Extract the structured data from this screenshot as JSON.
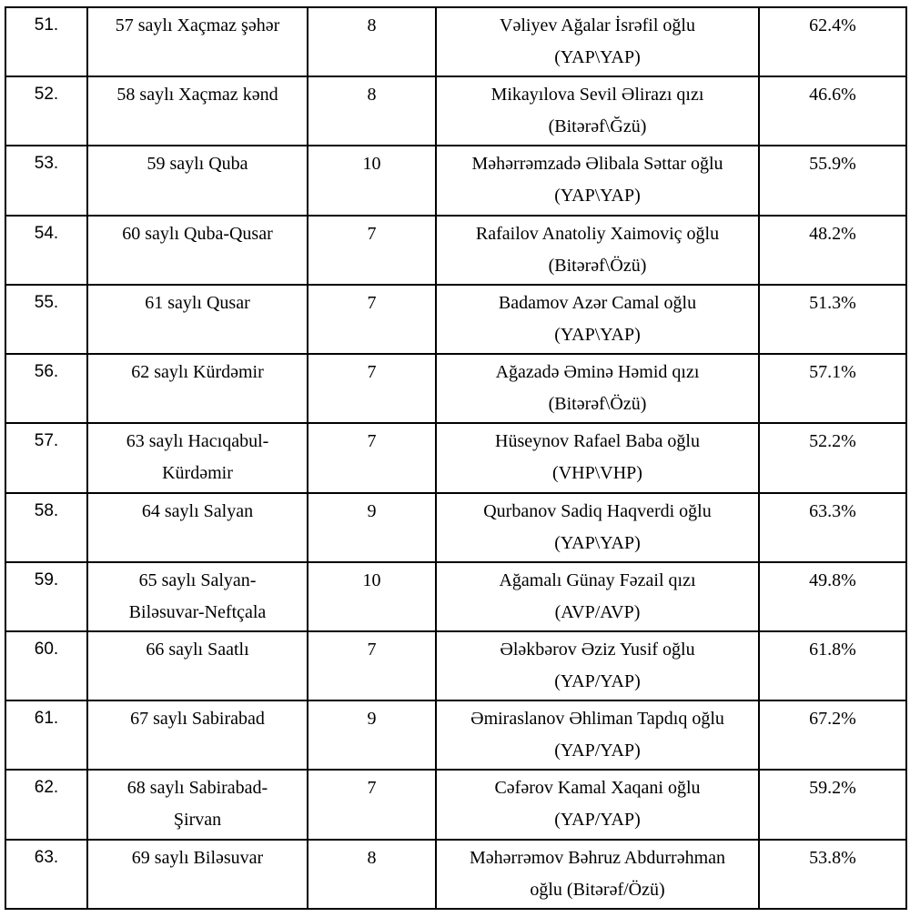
{
  "table": {
    "description": "Election results table, rows 51-63, Azerbaijani single-mandate constituencies",
    "rows": [
      {
        "no": "51.",
        "district": [
          "57 saylı Xaçmaz şəhər"
        ],
        "count": "8",
        "winner": [
          "Vəliyev Ağalar İsrəfil oğlu",
          "(YAP\\YAP)"
        ],
        "percent": "62.4%"
      },
      {
        "no": "52.",
        "district": [
          "58 saylı Xaçmaz kənd"
        ],
        "count": "8",
        "winner": [
          "Mikayılova Sevil Əlirazı qızı",
          "(Bitərəf\\Ğzü)"
        ],
        "percent": "46.6%"
      },
      {
        "no": "53.",
        "district": [
          "59 saylı Quba"
        ],
        "count": "10",
        "winner": [
          "Məhərrəmzadə Əlibala Səttar oğlu",
          "(YAP\\YAP)"
        ],
        "percent": "55.9%"
      },
      {
        "no": "54.",
        "district": [
          "60 saylı Quba-Qusar"
        ],
        "count": "7",
        "winner": [
          "Rafailov Anatoliy Xaimoviç oğlu",
          "(Bitərəf\\Özü)"
        ],
        "percent": "48.2%"
      },
      {
        "no": "55.",
        "district": [
          "61 saylı Qusar"
        ],
        "count": "7",
        "winner": [
          "Badamov Azər Camal oğlu",
          "(YAP\\YAP)"
        ],
        "percent": "51.3%"
      },
      {
        "no": "56.",
        "district": [
          "62 saylı Kürdəmir"
        ],
        "count": "7",
        "winner": [
          "Ağazadə Əminə Həmid qızı",
          "(Bitərəf\\Özü)"
        ],
        "percent": "57.1%"
      },
      {
        "no": "57.",
        "district": [
          "63 saylı Hacıqabul-",
          "Kürdəmir"
        ],
        "count": "7",
        "winner": [
          "Hüseynov Rafael Baba oğlu",
          "(VHP\\VHP)"
        ],
        "percent": "52.2%"
      },
      {
        "no": "58.",
        "district": [
          "64 saylı Salyan"
        ],
        "count": "9",
        "winner": [
          "Qurbanov Sadiq Haqverdi oğlu",
          "(YAP\\YAP)"
        ],
        "percent": "63.3%"
      },
      {
        "no": "59.",
        "district": [
          "65 saylı Salyan-",
          "Biləsuvar-Neftçala"
        ],
        "count": "10",
        "winner": [
          "Ağamalı Günay Fəzail qızı",
          "(AVP/AVP)"
        ],
        "percent": "49.8%"
      },
      {
        "no": "60.",
        "district": [
          "66 saylı Saatlı"
        ],
        "count": "7",
        "winner": [
          "Ələkbərov Əziz Yusif oğlu",
          "(YAP/YAP)"
        ],
        "percent": "61.8%"
      },
      {
        "no": "61.",
        "district": [
          "67 saylı Sabirabad"
        ],
        "count": "9",
        "winner": [
          "Əmiraslanov Əhliman Tapdıq oğlu",
          "(YAP/YAP)"
        ],
        "percent": "67.2%"
      },
      {
        "no": "62.",
        "district": [
          "68 saylı Sabirabad-",
          "Şirvan"
        ],
        "count": "7",
        "winner": [
          "Cəfərov Kamal Xaqani oğlu",
          "(YAP/YAP)"
        ],
        "percent": "59.2%"
      },
      {
        "no": "63.",
        "district": [
          "69 saylı Biləsuvar"
        ],
        "count": "8",
        "winner": [
          "Məhərrəmov Bəhruz Abdurrəhman",
          "oğlu (Bitərəf/Özü)"
        ],
        "percent": "53.8%"
      }
    ]
  }
}
